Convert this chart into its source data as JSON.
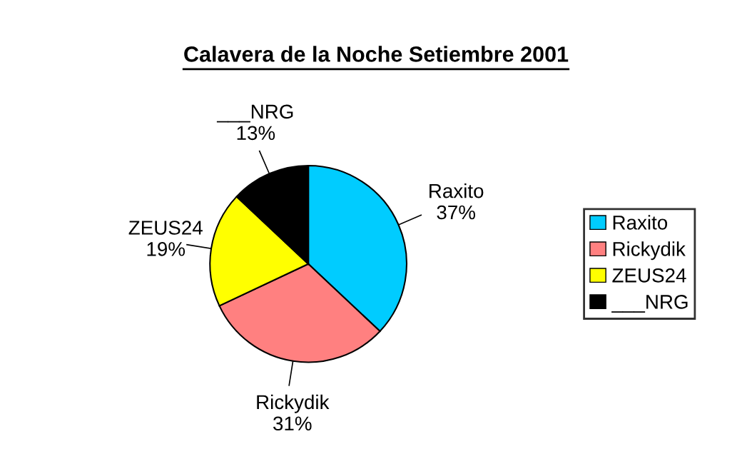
{
  "chart_data": {
    "type": "pie",
    "title": "Calavera de la Noche Setiembre 2001",
    "categories": [
      "Raxito",
      "Rickydik",
      "ZEUS24",
      "___NRG"
    ],
    "values": [
      37,
      31,
      19,
      13
    ],
    "value_labels": [
      "37%",
      "31%",
      "19%",
      "13%"
    ],
    "colors": [
      "#00ccff",
      "#ff8080",
      "#ffff00",
      "#000000"
    ],
    "legend": "right"
  }
}
